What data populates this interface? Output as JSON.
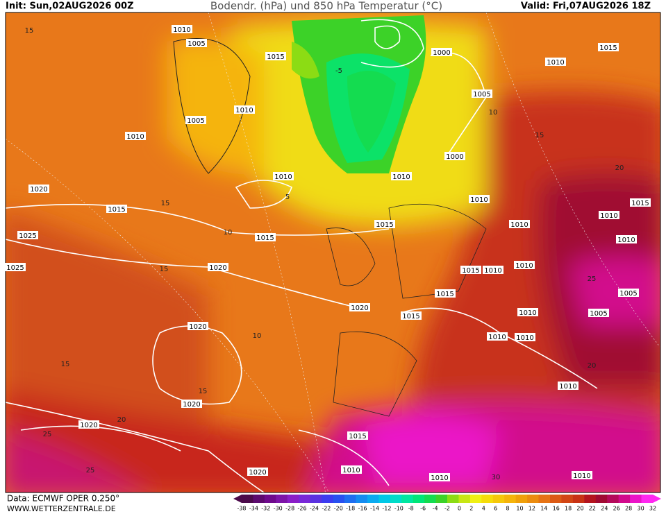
{
  "header": {
    "init": "Init: Sun,02AUG2026 00Z",
    "title": "Bodendr. (hPa) und 850 hPa Temperatur (°C)",
    "valid": "Valid: Fri,07AUG2026 18Z"
  },
  "footer": {
    "data": "Data: ECMWF OPER 0.250°",
    "site": "WWW.WETTERZENTRALE.DE"
  },
  "isobar_labels": [
    1010,
    1005,
    1015,
    1000,
    1010,
    1015,
    1010,
    1005,
    1005,
    1010,
    1000,
    1010,
    1010,
    1020,
    1015,
    1010,
    1015,
    1010,
    1015,
    1010,
    1025,
    1015,
    1010,
    1025,
    1020,
    1015,
    1010,
    1010,
    1015,
    1005,
    1020,
    1010,
    1005,
    1015,
    1010,
    1010,
    1020,
    1010,
    1020,
    1020,
    1015,
    1010,
    1010,
    1010,
    1020
  ],
  "temperature_labels": [
    15,
    10,
    15,
    10,
    -5,
    5,
    15,
    10,
    15,
    15,
    20,
    25,
    25,
    30,
    20,
    20,
    15,
    25
  ],
  "colorbar": {
    "labels": [
      -38,
      -34,
      -32,
      -30,
      -28,
      -26,
      -24,
      -22,
      -20,
      -18,
      -16,
      -14,
      -12,
      -10,
      -8,
      -6,
      -4,
      -2,
      0,
      2,
      4,
      6,
      8,
      10,
      12,
      14,
      16,
      18,
      20,
      22,
      24,
      26,
      28,
      30,
      32
    ],
    "colors": [
      "#4b0a4a",
      "#5c0a6e",
      "#6e0a8c",
      "#7d14a8",
      "#8a1ec8",
      "#7828d8",
      "#5a32e0",
      "#3c3cf0",
      "#2850f0",
      "#1e6ef0",
      "#148cf0",
      "#0aaaf0",
      "#00c8e6",
      "#00dcc8",
      "#00e6a0",
      "#00e678",
      "#14dc50",
      "#3cd228",
      "#8cdc14",
      "#c8e614",
      "#f0f014",
      "#f5dc0a",
      "#f5c80a",
      "#f5b40a",
      "#f0a00a",
      "#eb8c0f",
      "#e67314",
      "#dc5a14",
      "#d24614",
      "#c83214",
      "#b4141e",
      "#a00a32",
      "#b40a5a",
      "#d20a8c",
      "#eb14c8",
      "#ff28f0"
    ]
  }
}
